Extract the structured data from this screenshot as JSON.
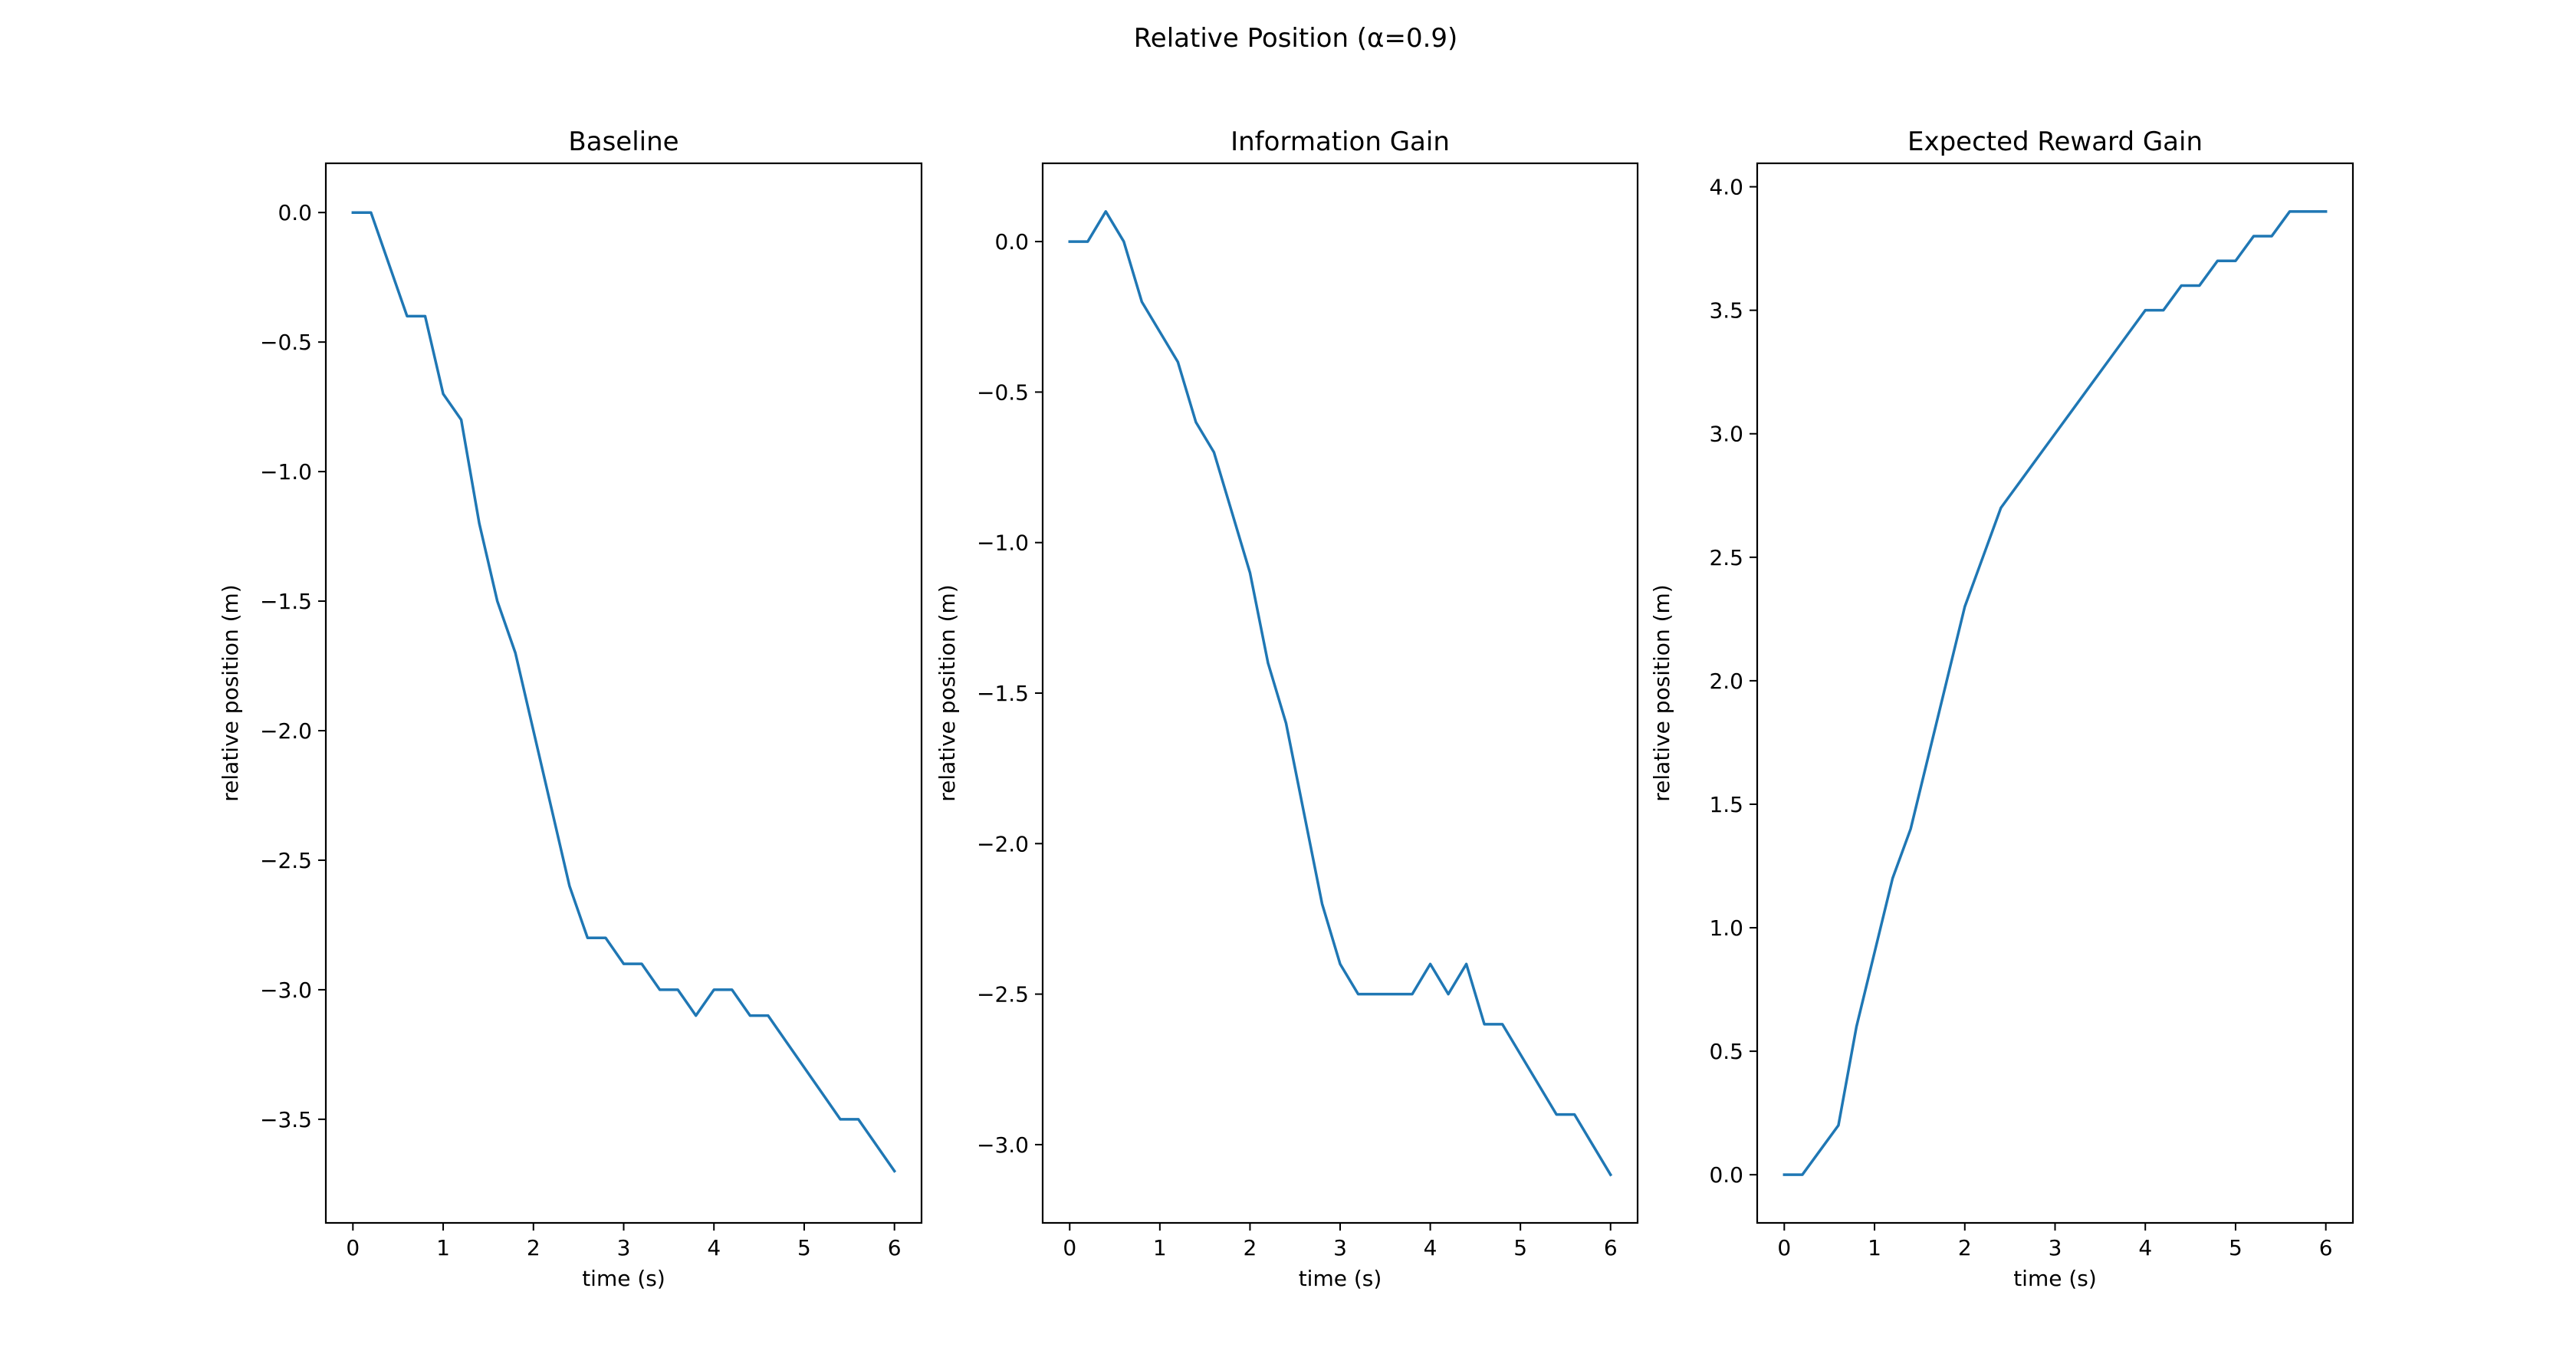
{
  "figure": {
    "title": "Relative Position (α=0.9)"
  },
  "style": {
    "line_color": "#1f77b4",
    "axes_color": "#000000",
    "background": "#ffffff"
  },
  "chart_data": [
    {
      "type": "line",
      "title": "Baseline",
      "xlabel": "time (s)",
      "ylabel": "relative position (m)",
      "xlim": [
        -0.3,
        6.3
      ],
      "ylim": [
        -3.9,
        0.19
      ],
      "xticks": [
        0,
        1,
        2,
        3,
        4,
        5,
        6
      ],
      "xtick_labels": [
        "0",
        "1",
        "2",
        "3",
        "4",
        "5",
        "6"
      ],
      "yticks": [
        0.0,
        -0.5,
        -1.0,
        -1.5,
        -2.0,
        -2.5,
        -3.0,
        -3.5
      ],
      "ytick_labels": [
        "0.0",
        "−0.5",
        "−1.0",
        "−1.5",
        "−2.0",
        "−2.5",
        "−3.0",
        "−3.5"
      ],
      "grid": false,
      "x": [
        0,
        0.2,
        0.4,
        0.6,
        0.8,
        1.0,
        1.2,
        1.4,
        1.6,
        1.8,
        2.0,
        2.2,
        2.4,
        2.6,
        2.8,
        3.0,
        3.2,
        3.4,
        3.6,
        3.8,
        4.0,
        4.2,
        4.4,
        4.6,
        4.8,
        5.0,
        5.2,
        5.4,
        5.6,
        5.8,
        6.0
      ],
      "y": [
        0.0,
        0.0,
        -0.2,
        -0.4,
        -0.4,
        -0.7,
        -0.8,
        -1.2,
        -1.5,
        -1.7,
        -2.0,
        -2.3,
        -2.6,
        -2.8,
        -2.8,
        -2.9,
        -2.9,
        -3.0,
        -3.0,
        -3.1,
        -3.0,
        -3.0,
        -3.1,
        -3.1,
        -3.2,
        -3.3,
        -3.4,
        -3.5,
        -3.5,
        -3.6,
        -3.7
      ]
    },
    {
      "type": "line",
      "title": "Information Gain",
      "xlabel": "time (s)",
      "ylabel": "relative position (m)",
      "xlim": [
        -0.3,
        6.3
      ],
      "ylim": [
        -3.26,
        0.26
      ],
      "xticks": [
        0,
        1,
        2,
        3,
        4,
        5,
        6
      ],
      "xtick_labels": [
        "0",
        "1",
        "2",
        "3",
        "4",
        "5",
        "6"
      ],
      "yticks": [
        0.0,
        -0.5,
        -1.0,
        -1.5,
        -2.0,
        -2.5,
        -3.0
      ],
      "ytick_labels": [
        "0.0",
        "−0.5",
        "−1.0",
        "−1.5",
        "−2.0",
        "−2.5",
        "−3.0"
      ],
      "grid": false,
      "x": [
        0,
        0.2,
        0.4,
        0.6,
        0.8,
        1.0,
        1.2,
        1.4,
        1.6,
        1.8,
        2.0,
        2.2,
        2.4,
        2.6,
        2.8,
        3.0,
        3.2,
        3.4,
        3.6,
        3.8,
        4.0,
        4.2,
        4.4,
        4.6,
        4.8,
        5.0,
        5.2,
        5.4,
        5.6,
        5.8,
        6.0
      ],
      "y": [
        0.0,
        0.0,
        0.1,
        0.0,
        -0.2,
        -0.3,
        -0.4,
        -0.6,
        -0.7,
        -0.9,
        -1.1,
        -1.4,
        -1.6,
        -1.9,
        -2.2,
        -2.4,
        -2.5,
        -2.5,
        -2.5,
        -2.5,
        -2.4,
        -2.5,
        -2.4,
        -2.6,
        -2.6,
        -2.7,
        -2.8,
        -2.9,
        -2.9,
        -3.0,
        -3.1
      ]
    },
    {
      "type": "line",
      "title": "Expected Reward Gain",
      "xlabel": "time (s)",
      "ylabel": "relative position (m)",
      "xlim": [
        -0.3,
        6.3
      ],
      "ylim": [
        -0.195,
        4.095
      ],
      "xticks": [
        0,
        1,
        2,
        3,
        4,
        5,
        6
      ],
      "xtick_labels": [
        "0",
        "1",
        "2",
        "3",
        "4",
        "5",
        "6"
      ],
      "yticks": [
        0.0,
        0.5,
        1.0,
        1.5,
        2.0,
        2.5,
        3.0,
        3.5,
        4.0
      ],
      "ytick_labels": [
        "0.0",
        "0.5",
        "1.0",
        "1.5",
        "2.0",
        "2.5",
        "3.0",
        "3.5",
        "4.0"
      ],
      "grid": false,
      "x": [
        0,
        0.2,
        0.4,
        0.6,
        0.8,
        1.0,
        1.2,
        1.4,
        1.6,
        1.8,
        2.0,
        2.2,
        2.4,
        2.6,
        2.8,
        3.0,
        3.2,
        3.4,
        3.6,
        3.8,
        4.0,
        4.2,
        4.4,
        4.6,
        4.8,
        5.0,
        5.2,
        5.4,
        5.6,
        5.8,
        6.0
      ],
      "y": [
        0.0,
        0.0,
        0.1,
        0.2,
        0.6,
        0.9,
        1.2,
        1.4,
        1.7,
        2.0,
        2.3,
        2.5,
        2.7,
        2.8,
        2.9,
        3.0,
        3.1,
        3.2,
        3.3,
        3.4,
        3.5,
        3.5,
        3.6,
        3.6,
        3.7,
        3.7,
        3.8,
        3.8,
        3.9,
        3.9,
        3.9
      ]
    }
  ]
}
